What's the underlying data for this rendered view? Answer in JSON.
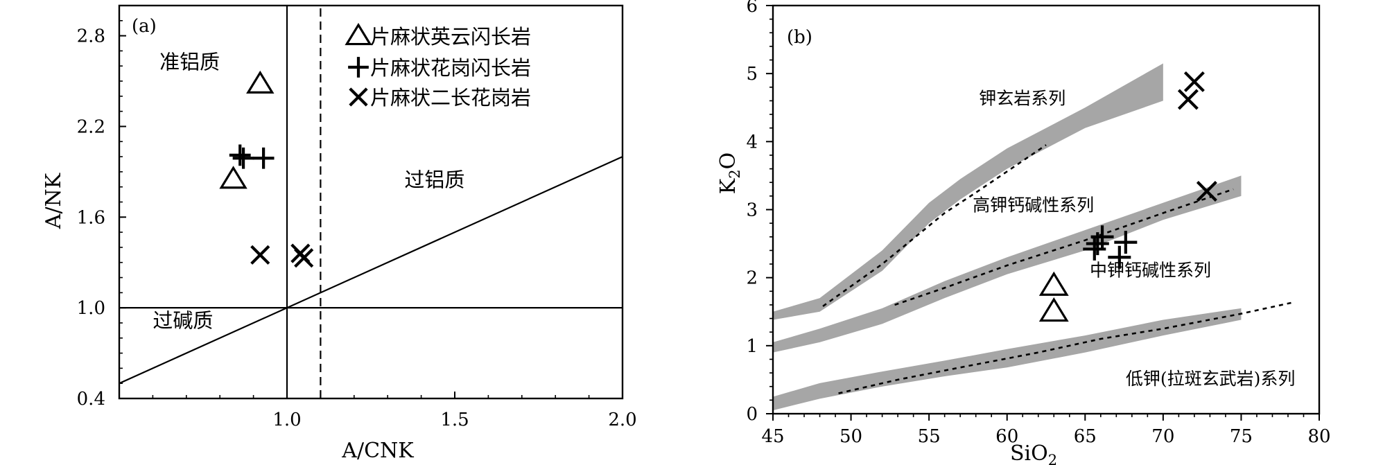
{
  "chart_data": [
    {
      "type": "scatter",
      "panel_label": "(a)",
      "xlabel": "A/CNK",
      "ylabel": "A/NK",
      "xlim": [
        0.5,
        2.0
      ],
      "ylim": [
        0.4,
        3.0
      ],
      "xticks": [
        {
          "v": 1.0,
          "label": "1.0"
        },
        {
          "v": 1.5,
          "label": "1.5"
        },
        {
          "v": 2.0,
          "label": "2.0"
        }
      ],
      "yticks": [
        {
          "v": 0.4,
          "label": "0.4"
        },
        {
          "v": 1.0,
          "label": "1.0"
        },
        {
          "v": 1.6,
          "label": "1.6"
        },
        {
          "v": 2.2,
          "label": "2.2"
        },
        {
          "v": 2.8,
          "label": "2.8"
        }
      ],
      "grid": false,
      "legend_position": "top-right",
      "legend": [
        {
          "marker": "triangle",
          "label": "片麻状英云闪长岩"
        },
        {
          "marker": "plus",
          "label": "片麻状花岗闪长岩"
        },
        {
          "marker": "cross",
          "label": "片麻状二长花岗岩"
        }
      ],
      "fields": [
        {
          "label": "准铝质",
          "x": 0.62,
          "y": 2.58
        },
        {
          "label": "过铝质",
          "x": 1.35,
          "y": 1.8
        },
        {
          "label": "过碱质",
          "x": 0.6,
          "y": 0.87
        }
      ],
      "lines": [
        {
          "style": "solid",
          "x": [
            1.0,
            1.0
          ],
          "y": [
            0.4,
            3.0
          ]
        },
        {
          "style": "solid",
          "x": [
            0.5,
            2.0
          ],
          "y": [
            1.0,
            1.0
          ]
        },
        {
          "style": "solid",
          "x": [
            0.5,
            2.0
          ],
          "y": [
            0.5,
            2.0
          ]
        },
        {
          "style": "dashed",
          "x": [
            1.1,
            1.1
          ],
          "y": [
            0.4,
            3.0
          ]
        }
      ],
      "series": [
        {
          "name": "片麻状英云闪长岩",
          "marker": "triangle",
          "points": [
            [
              0.92,
              2.48
            ],
            [
              0.84,
              1.85
            ]
          ]
        },
        {
          "name": "片麻状花岗闪长岩",
          "marker": "plus",
          "points": [
            [
              0.86,
              2.01
            ],
            [
              0.87,
              1.99
            ],
            [
              0.93,
              1.99
            ]
          ]
        },
        {
          "name": "片麻状二长花岗岩",
          "marker": "cross",
          "points": [
            [
              0.92,
              1.35
            ],
            [
              1.04,
              1.36
            ],
            [
              1.05,
              1.33
            ]
          ]
        }
      ]
    },
    {
      "type": "scatter",
      "panel_label": "(b)",
      "xlabel_parts": [
        "SiO",
        "2"
      ],
      "ylabel_parts": [
        "K",
        "2",
        "O"
      ],
      "xlim": [
        45,
        80
      ],
      "ylim": [
        0,
        6
      ],
      "xticks": [
        {
          "v": 45,
          "label": "45"
        },
        {
          "v": 50,
          "label": "50"
        },
        {
          "v": 55,
          "label": "55"
        },
        {
          "v": 60,
          "label": "60"
        },
        {
          "v": 65,
          "label": "65"
        },
        {
          "v": 70,
          "label": "70"
        },
        {
          "v": 75,
          "label": "75"
        },
        {
          "v": 80,
          "label": "80"
        }
      ],
      "yticks": [
        {
          "v": 0,
          "label": "0"
        },
        {
          "v": 1,
          "label": "1"
        },
        {
          "v": 2,
          "label": "2"
        },
        {
          "v": 3,
          "label": "3"
        },
        {
          "v": 4,
          "label": "4"
        },
        {
          "v": 5,
          "label": "5"
        },
        {
          "v": 6,
          "label": "6"
        }
      ],
      "grid": false,
      "bands_color": "#a6a6a6",
      "bands": [
        {
          "upper": [
            [
              45,
              1.5
            ],
            [
              48,
              1.7
            ],
            [
              52,
              2.4
            ],
            [
              55,
              3.1
            ],
            [
              57,
              3.45
            ],
            [
              60,
              3.9
            ],
            [
              65,
              4.5
            ],
            [
              70,
              5.15
            ]
          ],
          "lower": [
            [
              45,
              1.38
            ],
            [
              48,
              1.5
            ],
            [
              52,
              2.1
            ],
            [
              55,
              2.8
            ],
            [
              57,
              3.15
            ],
            [
              60,
              3.6
            ],
            [
              65,
              4.2
            ],
            [
              70,
              4.6
            ]
          ]
        },
        {
          "upper": [
            [
              45,
              1.05
            ],
            [
              48,
              1.25
            ],
            [
              52,
              1.55
            ],
            [
              56,
              1.95
            ],
            [
              60,
              2.3
            ],
            [
              65,
              2.7
            ],
            [
              70,
              3.1
            ],
            [
              75,
              3.5
            ]
          ],
          "lower": [
            [
              45,
              0.9
            ],
            [
              48,
              1.05
            ],
            [
              52,
              1.32
            ],
            [
              56,
              1.7
            ],
            [
              60,
              2.05
            ],
            [
              65,
              2.4
            ],
            [
              70,
              2.85
            ],
            [
              75,
              3.2
            ]
          ]
        },
        {
          "upper": [
            [
              45,
              0.25
            ],
            [
              48,
              0.45
            ],
            [
              52,
              0.62
            ],
            [
              56,
              0.78
            ],
            [
              60,
              0.95
            ],
            [
              65,
              1.15
            ],
            [
              70,
              1.38
            ],
            [
              75,
              1.55
            ]
          ],
          "lower": [
            [
              45,
              0.05
            ],
            [
              48,
              0.22
            ],
            [
              52,
              0.4
            ],
            [
              56,
              0.55
            ],
            [
              60,
              0.68
            ],
            [
              65,
              0.9
            ],
            [
              70,
              1.15
            ],
            [
              75,
              1.38
            ]
          ]
        }
      ],
      "dotted_lines": [
        [
          [
            48.2,
            1.58
          ],
          [
            52,
            2.2
          ],
          [
            56,
            2.95
          ],
          [
            58,
            3.25
          ],
          [
            62.5,
            3.95
          ]
        ],
        [
          [
            52.8,
            1.6
          ],
          [
            56,
            1.85
          ],
          [
            60,
            2.18
          ],
          [
            65,
            2.55
          ],
          [
            70,
            2.95
          ],
          [
            74.5,
            3.3
          ]
        ],
        [
          [
            49.2,
            0.3
          ],
          [
            53,
            0.5
          ],
          [
            57,
            0.68
          ],
          [
            62,
            0.9
          ],
          [
            66,
            1.1
          ],
          [
            70,
            1.25
          ],
          [
            75,
            1.47
          ],
          [
            78.2,
            1.63
          ]
        ]
      ],
      "series_labels": [
        {
          "label": "钾玄岩系列",
          "x": 58.2,
          "y": 4.55
        },
        {
          "label": "高钾钙碱性系列",
          "x": 57.8,
          "y": 2.98
        },
        {
          "label": "中钾钙碱性系列",
          "x": 65.3,
          "y": 2.02
        },
        {
          "label": "低钾(拉斑玄武岩)系列",
          "x": 67.6,
          "y": 0.43
        }
      ],
      "series": [
        {
          "name": "片麻状英云闪长岩",
          "marker": "triangle",
          "points": [
            [
              63.0,
              1.88
            ],
            [
              63.0,
              1.5
            ]
          ]
        },
        {
          "name": "片麻状花岗闪长岩",
          "marker": "plus",
          "points": [
            [
              65.6,
              2.42
            ],
            [
              65.8,
              2.5
            ],
            [
              66.1,
              2.6
            ],
            [
              67.2,
              2.3
            ],
            [
              67.6,
              2.52
            ]
          ]
        },
        {
          "name": "片麻状二长花岗岩",
          "marker": "cross",
          "points": [
            [
              72.0,
              4.88
            ],
            [
              71.6,
              4.62
            ],
            [
              72.8,
              3.27
            ]
          ]
        }
      ]
    }
  ]
}
